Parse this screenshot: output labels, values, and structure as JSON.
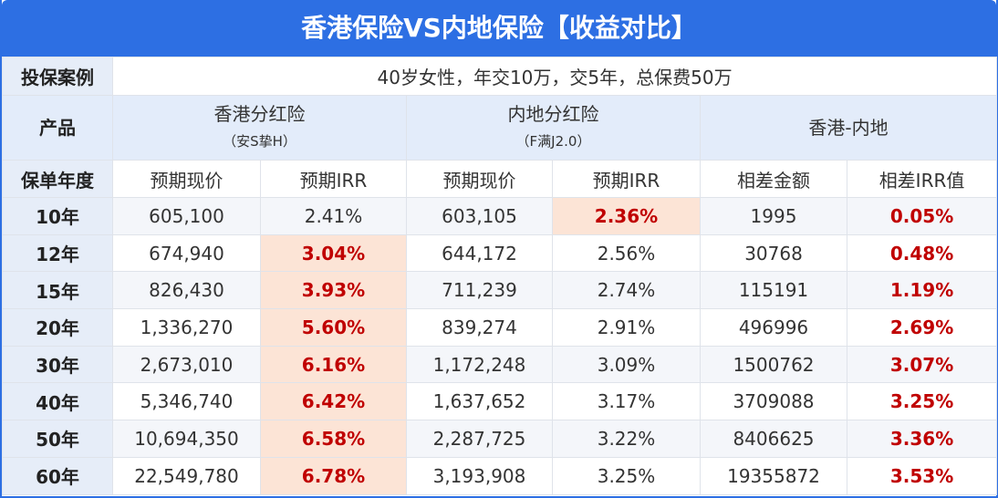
{
  "header": {
    "title": "香港保险VS内地保险【收益对比】"
  },
  "case": {
    "label": "投保案例",
    "text": "40岁女性，年交10万，交5年，总保费50万"
  },
  "products": {
    "label": "产品",
    "items": [
      {
        "name": "香港分红险",
        "note": "（安S挚H）"
      },
      {
        "name": "内地分红险",
        "note": "（F满J2.0）"
      },
      {
        "name": "香港-内地"
      }
    ]
  },
  "table": {
    "columns": [
      "保单年度",
      "预期现价",
      "预期IRR",
      "预期现价",
      "预期IRR",
      "相差金额",
      "相差IRR值"
    ],
    "rows": [
      [
        "10年",
        "605,100",
        "2.41%",
        "603,105",
        "2.36%",
        "1995",
        "0.05%"
      ],
      [
        "12年",
        "674,940",
        "3.04%",
        "644,172",
        "2.56%",
        "30768",
        "0.48%"
      ],
      [
        "15年",
        "826,430",
        "3.93%",
        "711,239",
        "2.74%",
        "115191",
        "1.19%"
      ],
      [
        "20年",
        "1,336,270",
        "5.60%",
        "839,274",
        "2.91%",
        "496996",
        "2.69%"
      ],
      [
        "30年",
        "2,673,010",
        "6.16%",
        "1,172,248",
        "3.09%",
        "1500762",
        "3.07%"
      ],
      [
        "40年",
        "5,346,740",
        "6.42%",
        "1,637,652",
        "3.17%",
        "3709088",
        "3.25%"
      ],
      [
        "50年",
        "10,694,350",
        "6.58%",
        "2,287,725",
        "3.22%",
        "8406625",
        "3.36%"
      ],
      [
        "60年",
        "22,549,780",
        "6.78%",
        "3,193,908",
        "3.25%",
        "19355872",
        "3.53%"
      ]
    ],
    "highlight_color": "#fce4d6",
    "emphasis_color": "#c00000",
    "highlight_cells": [
      [
        0,
        4
      ],
      [
        1,
        2
      ],
      [
        2,
        2
      ],
      [
        3,
        2
      ],
      [
        4,
        2
      ],
      [
        5,
        2
      ],
      [
        6,
        2
      ],
      [
        7,
        2
      ]
    ],
    "emphasis_cells": [
      [
        0,
        4
      ],
      [
        1,
        2
      ],
      [
        2,
        2
      ],
      [
        3,
        2
      ],
      [
        4,
        2
      ],
      [
        5,
        2
      ],
      [
        6,
        2
      ],
      [
        7,
        2
      ],
      [
        0,
        6
      ],
      [
        1,
        6
      ],
      [
        2,
        6
      ],
      [
        3,
        6
      ],
      [
        4,
        6
      ],
      [
        5,
        6
      ],
      [
        6,
        6
      ],
      [
        7,
        6
      ]
    ]
  }
}
